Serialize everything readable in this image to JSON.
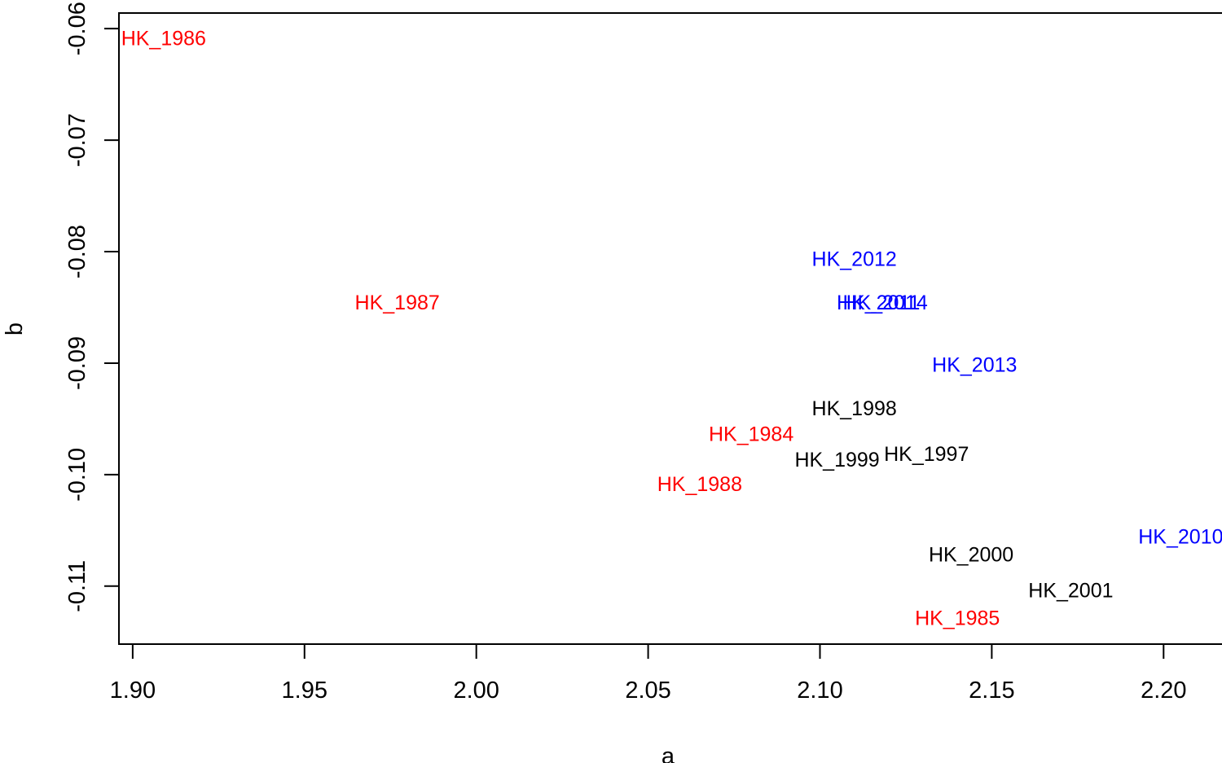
{
  "chart_data": {
    "type": "scatter",
    "title": "",
    "xlabel": "a",
    "ylabel": "b",
    "xlim": [
      1.896,
      2.217
    ],
    "ylim": [
      -0.1152,
      -0.0586
    ],
    "xticks": [
      1.9,
      1.95,
      2.0,
      2.05,
      2.1,
      2.15,
      2.2
    ],
    "xtick_labels": [
      "1.90",
      "1.95",
      "2.00",
      "2.05",
      "2.10",
      "2.15",
      "2.20"
    ],
    "yticks": [
      -0.06,
      -0.07,
      -0.08,
      -0.09,
      -0.1,
      -0.11
    ],
    "ytick_labels": [
      "-0.06",
      "-0.07",
      "-0.08",
      "-0.09",
      "-0.10",
      "-0.11"
    ],
    "grid": false,
    "points": [
      {
        "label": "HK_1986",
        "x": 1.909,
        "y": -0.0609,
        "color": "#ff0000"
      },
      {
        "label": "HK_1987",
        "x": 1.977,
        "y": -0.0846,
        "color": "#ff0000"
      },
      {
        "label": "HK_1984",
        "x": 2.08,
        "y": -0.0964,
        "color": "#ff0000"
      },
      {
        "label": "HK_1988",
        "x": 2.065,
        "y": -0.1009,
        "color": "#ff0000"
      },
      {
        "label": "HK_1985",
        "x": 2.14,
        "y": -0.1129,
        "color": "#ff0000"
      },
      {
        "label": "HK_1998",
        "x": 2.11,
        "y": -0.0941,
        "color": "#000000"
      },
      {
        "label": "HK_1999",
        "x": 2.105,
        "y": -0.0987,
        "color": "#000000"
      },
      {
        "label": "HK_1997",
        "x": 2.131,
        "y": -0.0982,
        "color": "#000000"
      },
      {
        "label": "HK_2000",
        "x": 2.144,
        "y": -0.1072,
        "color": "#000000"
      },
      {
        "label": "HK_2001",
        "x": 2.173,
        "y": -0.1104,
        "color": "#000000"
      },
      {
        "label": "HK_2012",
        "x": 2.11,
        "y": -0.0807,
        "color": "#0000ff"
      },
      {
        "label": "HK_2011",
        "x": 2.117,
        "y": -0.0846,
        "color": "#0000ff"
      },
      {
        "label": "HK_2014",
        "x": 2.119,
        "y": -0.0846,
        "color": "#0000ff"
      },
      {
        "label": "HK_2013",
        "x": 2.145,
        "y": -0.0902,
        "color": "#0000ff"
      },
      {
        "label": "HK_2010",
        "x": 2.205,
        "y": -0.1056,
        "color": "#0000ff"
      }
    ]
  }
}
